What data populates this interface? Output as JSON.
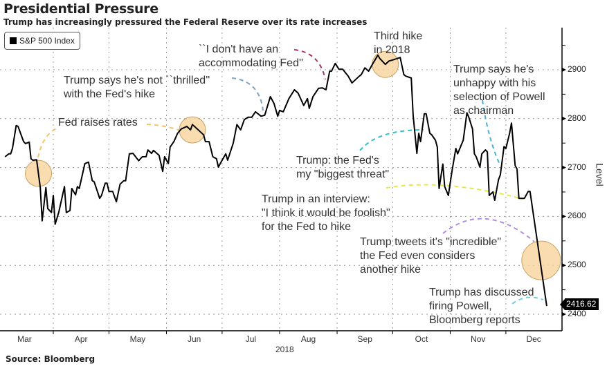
{
  "header": {
    "title": "Presidential Pressure",
    "subtitle": "Trump has increasingly pressured the Federal Reserve over its rate increases"
  },
  "source": "Source: Bloomberg",
  "chart_data": {
    "type": "line",
    "title": "Presidential Pressure",
    "subtitle": "Trump has increasingly pressured the Federal Reserve over its rate increases",
    "legend": {
      "label": "S&P 500 Index",
      "placement": "top-left"
    },
    "xlabel": "2018",
    "ylabel": "Level",
    "ylim": [
      2380,
      2960
    ],
    "yticks": [
      2400,
      2500,
      2600,
      2700,
      2800,
      2900
    ],
    "grid": true,
    "x_unit": "day of year 2018",
    "months": [
      {
        "label": "Mar",
        "start": 60
      },
      {
        "label": "Apr",
        "start": 91
      },
      {
        "label": "May",
        "start": 121
      },
      {
        "label": "Jun",
        "start": 152
      },
      {
        "label": "Jul",
        "start": 182
      },
      {
        "label": "Aug",
        "start": 213
      },
      {
        "label": "Sep",
        "start": 244
      },
      {
        "label": "Oct",
        "start": 274
      },
      {
        "label": "Nov",
        "start": 305
      },
      {
        "label": "Dec",
        "start": 335
      }
    ],
    "last_value_label": "2416.62",
    "series": [
      {
        "name": "S&P 500 Index",
        "color": "#000000",
        "points": [
          [
            65,
            2722
          ],
          [
            67,
            2728
          ],
          [
            68,
            2728
          ],
          [
            69,
            2739
          ],
          [
            71,
            2786
          ],
          [
            72,
            2784
          ],
          [
            75,
            2753
          ],
          [
            76,
            2749
          ],
          [
            78,
            2752
          ],
          [
            79,
            2718
          ],
          [
            80,
            2715
          ],
          [
            82,
            2716
          ],
          [
            84,
            2659
          ],
          [
            85,
            2591
          ],
          [
            87,
            2659
          ],
          [
            88,
            2616
          ],
          [
            90,
            2608
          ],
          [
            91,
            2643
          ],
          [
            92,
            2584
          ],
          [
            94,
            2609
          ],
          [
            97,
            2661
          ],
          [
            98,
            2608
          ],
          [
            100,
            2612
          ],
          [
            101,
            2657
          ],
          [
            103,
            2644
          ],
          [
            104,
            2661
          ],
          [
            105,
            2657
          ],
          [
            108,
            2708
          ],
          [
            110,
            2711
          ],
          [
            112,
            2673
          ],
          [
            113,
            2671
          ],
          [
            116,
            2637
          ],
          [
            117,
            2643
          ],
          [
            119,
            2668
          ],
          [
            120,
            2668
          ],
          [
            121,
            2651
          ],
          [
            123,
            2651
          ],
          [
            125,
            2630
          ],
          [
            127,
            2666
          ],
          [
            129,
            2673
          ],
          [
            130,
            2673
          ],
          [
            132,
            2728
          ],
          [
            134,
            2729
          ],
          [
            137,
            2714
          ],
          [
            139,
            2722
          ],
          [
            141,
            2722
          ],
          [
            142,
            2736
          ],
          [
            144,
            2729
          ],
          [
            145,
            2735
          ],
          [
            148,
            2725
          ],
          [
            150,
            2692
          ],
          [
            151,
            2722
          ],
          [
            153,
            2708
          ],
          [
            154,
            2742
          ],
          [
            156,
            2753
          ],
          [
            158,
            2770
          ],
          [
            160,
            2779
          ],
          [
            163,
            2784
          ],
          [
            165,
            2777
          ],
          [
            166,
            2788
          ],
          [
            168,
            2781
          ],
          [
            170,
            2774
          ],
          [
            172,
            2767
          ],
          [
            173,
            2753
          ],
          [
            175,
            2753
          ],
          [
            177,
            2722
          ],
          [
            179,
            2718
          ],
          [
            180,
            2701
          ],
          [
            182,
            2715
          ],
          [
            184,
            2728
          ],
          [
            185,
            2715
          ],
          [
            188,
            2750
          ],
          [
            190,
            2788
          ],
          [
            192,
            2777
          ],
          [
            194,
            2798
          ],
          [
            196,
            2803
          ],
          [
            198,
            2803
          ],
          [
            200,
            2814
          ],
          [
            203,
            2805
          ],
          [
            205,
            2807
          ],
          [
            208,
            2845
          ],
          [
            210,
            2831
          ],
          [
            212,
            2805
          ],
          [
            213,
            2817
          ],
          [
            215,
            2814
          ],
          [
            218,
            2841
          ],
          [
            221,
            2859
          ],
          [
            223,
            2852
          ],
          [
            226,
            2827
          ],
          [
            228,
            2841
          ],
          [
            229,
            2821
          ],
          [
            231,
            2845
          ],
          [
            234,
            2862
          ],
          [
            236,
            2863
          ],
          [
            238,
            2859
          ],
          [
            240,
            2897
          ],
          [
            241,
            2897
          ],
          [
            243,
            2913
          ],
          [
            245,
            2901
          ],
          [
            247,
            2901
          ],
          [
            250,
            2887
          ],
          [
            252,
            2873
          ],
          [
            254,
            2880
          ],
          [
            256,
            2887
          ],
          [
            257,
            2890
          ],
          [
            259,
            2904
          ],
          [
            261,
            2897
          ],
          [
            263,
            2911
          ],
          [
            266,
            2930
          ],
          [
            267,
            2923
          ],
          [
            270,
            2911
          ],
          [
            272,
            2918
          ],
          [
            274,
            2920
          ],
          [
            278,
            2925
          ],
          [
            280,
            2890
          ],
          [
            281,
            2887
          ],
          [
            284,
            2883
          ],
          [
            285,
            2807
          ],
          [
            287,
            2729
          ],
          [
            288,
            2770
          ],
          [
            289,
            2753
          ],
          [
            291,
            2810
          ],
          [
            292,
            2810
          ],
          [
            294,
            2770
          ],
          [
            295,
            2767
          ],
          [
            297,
            2756
          ],
          [
            298,
            2742
          ],
          [
            299,
            2657
          ],
          [
            301,
            2707
          ],
          [
            302,
            2661
          ],
          [
            304,
            2643
          ],
          [
            306,
            2694
          ],
          [
            308,
            2739
          ],
          [
            309,
            2728
          ],
          [
            312,
            2756
          ],
          [
            314,
            2812
          ],
          [
            315,
            2803
          ],
          [
            317,
            2779
          ],
          [
            318,
            2728
          ],
          [
            319,
            2722
          ],
          [
            321,
            2701
          ],
          [
            322,
            2728
          ],
          [
            324,
            2736
          ],
          [
            325,
            2732
          ],
          [
            326,
            2643
          ],
          [
            328,
            2650
          ],
          [
            329,
            2633
          ],
          [
            331,
            2675
          ],
          [
            332,
            2685
          ],
          [
            334,
            2743
          ],
          [
            335,
            2739
          ],
          [
            337,
            2770
          ],
          [
            338,
            2791
          ],
          [
            340,
            2704
          ],
          [
            341,
            2697
          ],
          [
            342,
            2637
          ],
          [
            344,
            2637
          ],
          [
            345,
            2637
          ],
          [
            347,
            2651
          ],
          [
            348,
            2651
          ],
          [
            357,
            2416.62
          ]
        ]
      }
    ],
    "highlights": [
      {
        "day": 83,
        "value": 2688,
        "size": "small"
      },
      {
        "day": 166,
        "value": 2777,
        "size": "small"
      },
      {
        "day": 270,
        "value": 2911,
        "size": "small"
      },
      {
        "day": 354,
        "value": 2510,
        "size": "large"
      }
    ],
    "annotations": [
      {
        "lines": [
          "Fed raises rates"
        ],
        "color": "#f2c46a"
      },
      {
        "lines": [
          "Trump says he's not ``thrilled''",
          "with the Fed's hike"
        ],
        "color": "#7f9fc4"
      },
      {
        "lines": [
          "``I don't have an",
          "accommodating Fed''"
        ],
        "color": "#a0336a"
      },
      {
        "lines": [
          "Third hike",
          "in 2018"
        ],
        "color": "#f2c46a"
      },
      {
        "lines": [
          "Trump says he's",
          "unhappy with his",
          "selection of Powell",
          "as chairman"
        ],
        "color": "#4ab0d8"
      },
      {
        "lines": [
          "Trump: the Fed's",
          "my \"biggest threat\""
        ],
        "color": "#2fc0c8"
      },
      {
        "lines": [
          "Trump in an interview:",
          "\"I think it would be foolish\"",
          "for the Fed to hike"
        ],
        "color": "#e8e84a"
      },
      {
        "lines": [
          "Trump tweets it's \"incredible\"",
          "the Fed even considers",
          "another hike"
        ],
        "color": "#b38be0"
      },
      {
        "lines": [
          "Trump has discussed",
          "firing Powell,",
          "Bloomberg reports"
        ],
        "color": "#6ed0d8"
      }
    ]
  }
}
